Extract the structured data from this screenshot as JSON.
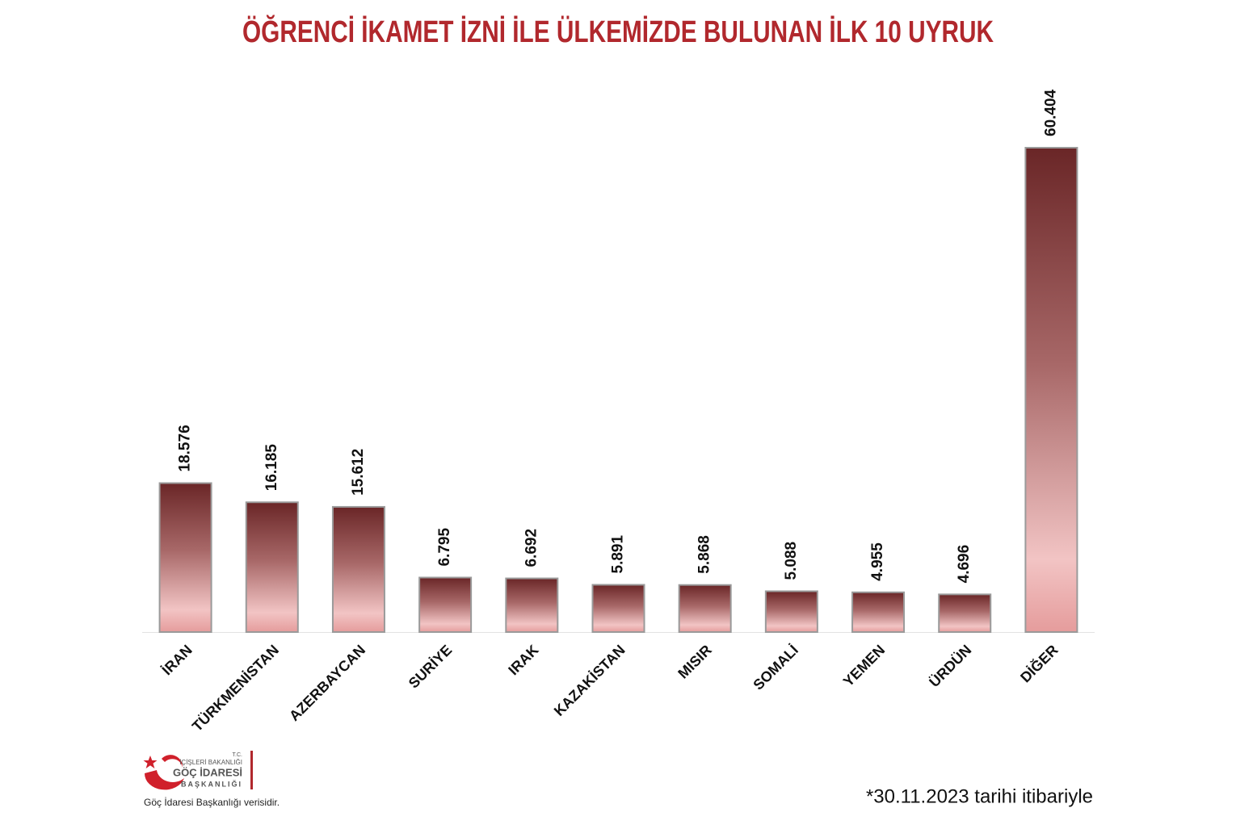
{
  "chart_data": {
    "type": "bar",
    "title": "ÖĞRENCİ İKAMET İZNİ İLE ÜLKEMİZDE BULUNAN İLK 10 UYRUK",
    "categories": [
      "İRAN",
      "TÜRKMENİSTAN",
      "AZERBAYCAN",
      "SURİYE",
      "IRAK",
      "KAZAKİSTAN",
      "MISIR",
      "SOMALİ",
      "YEMEN",
      "ÜRDÜN",
      "DİĞER"
    ],
    "values": [
      18576,
      16185,
      15612,
      6795,
      6692,
      5891,
      5868,
      5088,
      4955,
      4696,
      60404
    ],
    "value_labels": [
      "18.576",
      "16.185",
      "15.612",
      "6.795",
      "6.692",
      "5.891",
      "5.868",
      "5.088",
      "4.955",
      "4.696",
      "60.404"
    ],
    "color": "#7a3434",
    "note": "*30.11.2023 tarihi itibariyle",
    "source": "Göç İdaresi Başkanlığı verisidir.",
    "logo": {
      "line1": "T.C.",
      "line2": "İÇİŞLERİ BAKANLIĞI",
      "line3": "GÖÇ İDARESİ",
      "line4": "BAŞKANLIĞI"
    }
  }
}
